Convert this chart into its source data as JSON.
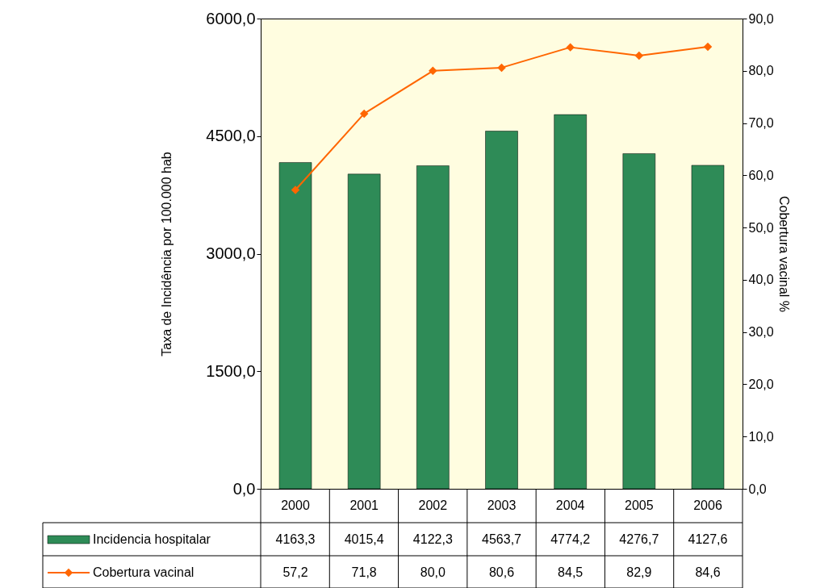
{
  "chart_data": {
    "type": "bar",
    "categories": [
      "2000",
      "2001",
      "2002",
      "2003",
      "2004",
      "2005",
      "2006"
    ],
    "ylabel": "Taxa de Incidência por 100.000 hab",
    "y2label": "Cobertura vacinal %",
    "ylim": [
      0,
      6000
    ],
    "yticks": [
      {
        "value": 0,
        "label": "0,0"
      },
      {
        "value": 1500,
        "label": "1500,0"
      },
      {
        "value": 3000,
        "label": "3000,0"
      },
      {
        "value": 4500,
        "label": "4500,0"
      },
      {
        "value": 6000,
        "label": "6000,0"
      }
    ],
    "y2lim": [
      0,
      90
    ],
    "y2ticks": [
      {
        "value": 0,
        "label": "0,0"
      },
      {
        "value": 10,
        "label": "10,0"
      },
      {
        "value": 20,
        "label": "20,0"
      },
      {
        "value": 30,
        "label": "30,0"
      },
      {
        "value": 40,
        "label": "40,0"
      },
      {
        "value": 50,
        "label": "50,0"
      },
      {
        "value": 60,
        "label": "60,0"
      },
      {
        "value": 70,
        "label": "70,0"
      },
      {
        "value": 80,
        "label": "80,0"
      },
      {
        "value": 90,
        "label": "90,0"
      }
    ],
    "series": [
      {
        "name": "Incidencia hospitalar",
        "type": "bar",
        "color": "#2e8b57",
        "values": [
          4163.3,
          4015.4,
          4122.3,
          4563.7,
          4774.2,
          4276.7,
          4127.6
        ],
        "value_labels": [
          "4163,3",
          "4015,4",
          "4122,3",
          "4563,7",
          "4774,2",
          "4276,7",
          "4127,6"
        ]
      },
      {
        "name": "Cobertura vacinal",
        "type": "line",
        "axis": "y2",
        "color": "#ff6600",
        "marker": "diamond",
        "values": [
          57.2,
          71.8,
          80.0,
          80.6,
          84.5,
          82.9,
          84.6
        ],
        "value_labels": [
          "57,2",
          "71,8",
          "80,0",
          "80,6",
          "84,5",
          "82,9",
          "84,6"
        ]
      }
    ],
    "legend": "bottom",
    "grid": false
  }
}
